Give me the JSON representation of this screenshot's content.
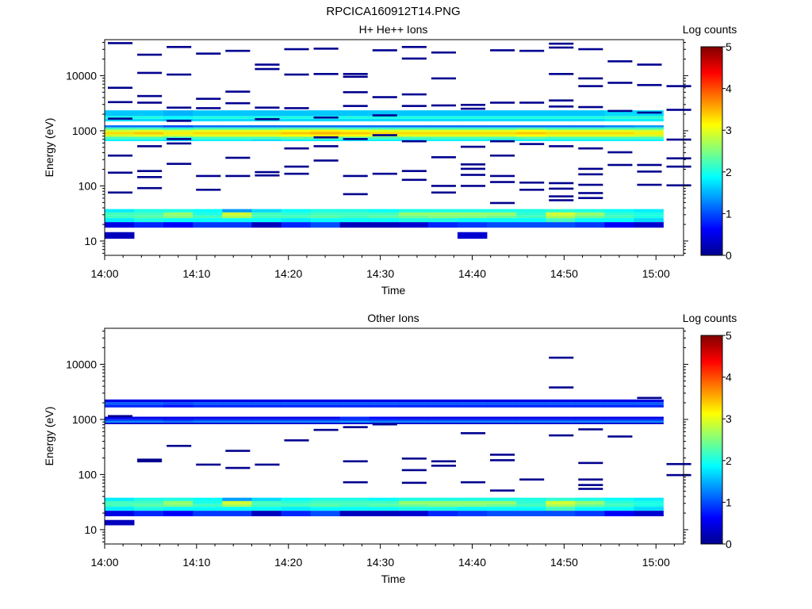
{
  "figure": {
    "filename": "RPCICA160912T14.PNG"
  },
  "chart_data": [
    {
      "type": "heatmap",
      "title": "H+ He++ Ions",
      "xlabel": "Time",
      "ylabel": "Energy (eV)",
      "colorbar_label": "Log counts",
      "x_ticks": [
        "14:00",
        "14:10",
        "14:20",
        "14:30",
        "14:40",
        "14:50",
        "15:00"
      ],
      "x_range_minutes": [
        0,
        63
      ],
      "y_scale": "log",
      "y_ticks": [
        "10",
        "100",
        "1000",
        "10000"
      ],
      "y_range": [
        5.5,
        45000
      ],
      "colorbar_ticks": [
        "0",
        "1",
        "2",
        "3",
        "4",
        "5"
      ],
      "colorbar_range": [
        0,
        5
      ],
      "colormap": "jet",
      "time_bins_minutes": [
        0,
        3.2,
        6.4,
        9.6,
        12.8,
        16,
        19.2,
        22.4,
        25.6,
        28.8,
        32,
        35.2,
        38.4,
        41.6,
        44.8,
        48,
        51.2,
        54.4,
        57.6,
        60.8
      ],
      "band_ranges": [
        {
          "e_lo": 650,
          "e_hi": 700,
          "levels": [
            1.8,
            1.8,
            1.7,
            1.8,
            1.8,
            1.7,
            1.8,
            1.8,
            1.8,
            1.8,
            1.8,
            1.8,
            1.8,
            1.8,
            1.8,
            1.8,
            1.8,
            1.8,
            1.8
          ]
        },
        {
          "e_lo": 700,
          "e_hi": 780,
          "levels": [
            2.2,
            2.2,
            2.1,
            2.2,
            2.2,
            2.2,
            2.3,
            2.3,
            2.3,
            2.2,
            2.2,
            2.2,
            2.2,
            2.2,
            2.3,
            2.2,
            2.2,
            2.2,
            2.2
          ]
        },
        {
          "e_lo": 780,
          "e_hi": 860,
          "levels": [
            2.9,
            3.0,
            2.9,
            3.0,
            3.0,
            3.0,
            3.1,
            3.2,
            3.1,
            3.0,
            3.0,
            3.0,
            3.0,
            3.0,
            3.1,
            3.0,
            3.0,
            3.0,
            2.9
          ]
        },
        {
          "e_lo": 860,
          "e_hi": 950,
          "levels": [
            3.3,
            3.4,
            3.2,
            3.3,
            3.3,
            3.3,
            3.4,
            3.5,
            3.4,
            3.3,
            3.3,
            3.3,
            3.3,
            3.3,
            3.4,
            3.3,
            3.3,
            3.3,
            3.2
          ]
        },
        {
          "e_lo": 950,
          "e_hi": 1050,
          "levels": [
            2.9,
            3.0,
            2.9,
            3.0,
            3.0,
            3.0,
            3.1,
            3.2,
            3.1,
            3.0,
            3.0,
            3.0,
            3.0,
            3.0,
            3.1,
            3.0,
            3.0,
            3.0,
            2.9
          ]
        },
        {
          "e_lo": 1050,
          "e_hi": 1150,
          "levels": [
            2.2,
            2.2,
            2.1,
            2.2,
            2.2,
            2.2,
            2.3,
            2.3,
            2.2,
            2.2,
            2.2,
            2.2,
            2.2,
            2.2,
            2.3,
            2.2,
            2.2,
            2.2,
            2.2
          ]
        },
        {
          "e_lo": 1150,
          "e_hi": 1260,
          "levels": [
            1.2,
            1.2,
            1.0,
            1.2,
            1.2,
            1.2,
            1.2,
            1.2,
            1.2,
            1.2,
            1.2,
            1.2,
            1.2,
            1.2,
            1.2,
            1.2,
            1.2,
            1.3,
            1.4
          ]
        },
        {
          "e_lo": 1480,
          "e_hi": 1650,
          "levels": [
            1.7,
            1.7,
            1.6,
            1.7,
            1.7,
            1.7,
            1.7,
            1.7,
            1.7,
            1.7,
            1.7,
            1.7,
            1.7,
            1.7,
            1.7,
            1.7,
            1.7,
            1.8,
            1.8
          ]
        },
        {
          "e_lo": 1650,
          "e_hi": 1850,
          "levels": [
            2.0,
            2.0,
            1.9,
            2.0,
            2.0,
            2.0,
            2.0,
            2.0,
            2.0,
            2.0,
            2.0,
            2.0,
            2.0,
            2.0,
            2.0,
            2.0,
            2.0,
            2.1,
            2.1
          ]
        },
        {
          "e_lo": 1850,
          "e_hi": 2350,
          "levels": [
            1.6,
            1.6,
            1.5,
            1.6,
            1.6,
            1.6,
            1.6,
            1.6,
            1.6,
            1.6,
            1.6,
            1.6,
            1.6,
            1.6,
            1.6,
            1.6,
            1.6,
            1.7,
            1.7
          ]
        },
        {
          "e_lo": 33,
          "e_hi": 38,
          "levels": [
            1.8,
            2.0,
            2.0,
            1.9,
            1.4,
            1.7,
            1.9,
            2.0,
            2.0,
            1.9,
            2.0,
            2.0,
            2.0,
            2.0,
            2.0,
            2.1,
            2.0,
            1.9,
            1.8
          ]
        },
        {
          "e_lo": 29,
          "e_hi": 33,
          "levels": [
            2.2,
            2.2,
            2.6,
            2.0,
            2.9,
            2.2,
            2.1,
            2.2,
            2.2,
            2.2,
            2.6,
            2.6,
            2.6,
            2.6,
            2.1,
            2.9,
            2.6,
            2.1,
            2.0
          ]
        },
        {
          "e_lo": 26,
          "e_hi": 29,
          "levels": [
            2.2,
            2.3,
            2.5,
            2.2,
            2.7,
            2.2,
            2.2,
            2.3,
            2.2,
            2.3,
            2.4,
            2.5,
            2.5,
            2.4,
            2.2,
            2.7,
            2.4,
            2.2,
            2.0
          ]
        },
        {
          "e_lo": 22,
          "e_hi": 26,
          "levels": [
            1.8,
            2.0,
            1.9,
            1.9,
            1.9,
            1.9,
            1.8,
            1.9,
            1.9,
            1.9,
            2.0,
            2.0,
            1.9,
            1.9,
            1.9,
            2.2,
            1.9,
            1.9,
            1.7
          ]
        },
        {
          "e_lo": 17.5,
          "e_hi": 22,
          "levels": [
            0.5,
            0.8,
            0.6,
            0.9,
            0.9,
            0.3,
            0.8,
            1.0,
            0.3,
            0.3,
            0.4,
            0.8,
            0.9,
            1.0,
            1.0,
            1.0,
            0.9,
            0.6,
            0.4
          ]
        },
        {
          "e_lo": 11,
          "e_hi": 14.5,
          "levels": [
            0.3,
            null,
            null,
            null,
            null,
            null,
            null,
            null,
            null,
            null,
            null,
            null,
            0.4,
            null,
            null,
            null,
            null,
            null,
            null
          ]
        }
      ],
      "sparse_lines_log10E": [
        [
          4.59,
          3.78,
          3.52,
          3.22,
          2.55,
          2.24,
          1.88
        ],
        [
          4.38,
          4.05,
          3.63,
          3.51,
          2.72,
          2.27,
          2.16,
          1.96
        ],
        [
          4.52,
          4.02,
          3.42,
          3.18,
          2.85,
          2.77,
          2.4
        ],
        [
          4.4,
          3.58,
          3.41,
          2.18,
          1.93
        ],
        [
          4.45,
          3.71,
          3.5,
          2.51,
          2.18
        ],
        [
          4.2,
          4.12,
          3.42,
          3.21,
          2.25,
          2.19
        ],
        [
          4.48,
          4.02,
          3.41,
          2.68,
          2.35,
          2.22
        ],
        [
          4.49,
          4.03,
          3.24,
          2.88,
          2.72,
          2.46
        ],
        [
          4.03,
          3.98,
          3.7,
          3.45,
          2.85,
          2.18,
          1.85
        ],
        [
          4.46,
          3.61,
          3.28,
          2.92,
          2.22
        ],
        [
          4.52,
          4.31,
          3.66,
          3.45,
          2.81,
          2.27,
          2.11
        ],
        [
          4.42,
          3.95,
          3.46,
          2.52,
          2.0,
          1.88
        ],
        [
          3.47,
          3.4,
          2.71,
          2.39,
          2.31,
          2.2,
          2.0
        ],
        [
          4.46,
          3.51,
          2.81,
          2.55,
          2.18,
          2.07,
          1.69
        ],
        [
          4.45,
          3.51,
          2.76,
          2.06,
          1.93
        ],
        [
          4.58,
          4.51,
          4.03,
          3.55,
          3.44,
          2.72,
          2.05,
          1.95,
          1.81,
          1.74
        ],
        [
          4.48,
          3.95,
          3.81,
          3.43,
          2.68,
          2.31,
          2.21,
          2.02,
          1.87,
          1.78
        ],
        [
          4.26,
          3.87,
          3.36,
          2.61,
          2.38
        ],
        [
          4.2,
          3.83,
          3.33,
          2.38,
          2.26,
          2.02
        ],
        [
          3.81,
          3.38,
          2.84,
          2.5,
          2.35,
          2.01
        ]
      ]
    },
    {
      "type": "heatmap",
      "title": "Other Ions",
      "xlabel": "Time",
      "ylabel": "Energy (eV)",
      "colorbar_label": "Log counts",
      "x_ticks": [
        "14:00",
        "14:10",
        "14:20",
        "14:30",
        "14:40",
        "14:50",
        "15:00"
      ],
      "x_range_minutes": [
        0,
        63
      ],
      "y_scale": "log",
      "y_ticks": [
        "10",
        "100",
        "1000",
        "10000"
      ],
      "y_range": [
        5.5,
        45000
      ],
      "colorbar_ticks": [
        "0",
        "1",
        "2",
        "3",
        "4",
        "5"
      ],
      "colorbar_range": [
        0,
        5
      ],
      "colormap": "jet",
      "time_bins_minutes": [
        0,
        3.2,
        6.4,
        9.6,
        12.8,
        16,
        19.2,
        22.4,
        25.6,
        28.8,
        32,
        35.2,
        38.4,
        41.6,
        44.8,
        48,
        51.2,
        54.4,
        57.6,
        60.8
      ],
      "band_ranges": [
        {
          "e_lo": 820,
          "e_hi": 880,
          "levels": [
            0.4,
            0.4,
            0.4,
            0.4,
            0.4,
            0.4,
            0.4,
            0.4,
            0.4,
            0.4,
            0.4,
            0.4,
            0.4,
            0.4,
            0.4,
            0.4,
            0.4,
            0.4,
            0.4
          ]
        },
        {
          "e_lo": 880,
          "e_hi": 950,
          "levels": [
            1.3,
            1.3,
            1.2,
            1.3,
            1.3,
            1.3,
            1.3,
            1.3,
            1.4,
            1.3,
            1.3,
            1.3,
            1.3,
            1.3,
            1.3,
            1.3,
            1.3,
            1.3,
            1.3
          ]
        },
        {
          "e_lo": 950,
          "e_hi": 1020,
          "levels": [
            0.8,
            0.8,
            0.7,
            0.8,
            0.8,
            0.8,
            0.8,
            0.8,
            0.8,
            0.8,
            0.8,
            0.8,
            0.8,
            0.8,
            0.8,
            0.8,
            0.8,
            0.8,
            0.8
          ]
        },
        {
          "e_lo": 1020,
          "e_hi": 1120,
          "levels": [
            0.5,
            0.5,
            0.5,
            0.5,
            0.5,
            0.5,
            0.5,
            0.5,
            0.8,
            0.6,
            0.5,
            0.5,
            0.5,
            0.5,
            0.5,
            0.5,
            0.5,
            0.5,
            0.5
          ]
        },
        {
          "e_lo": 1650,
          "e_hi": 1850,
          "levels": [
            0.8,
            0.8,
            0.7,
            0.8,
            0.8,
            0.8,
            0.8,
            0.8,
            0.8,
            0.8,
            0.8,
            0.8,
            0.8,
            0.8,
            0.8,
            0.8,
            0.8,
            0.8,
            0.8
          ]
        },
        {
          "e_lo": 1850,
          "e_hi": 2050,
          "levels": [
            1.1,
            1.1,
            1.0,
            1.1,
            1.1,
            1.1,
            1.1,
            1.1,
            1.1,
            1.1,
            1.1,
            1.1,
            1.1,
            1.1,
            1.1,
            1.1,
            1.1,
            1.1,
            1.1
          ]
        },
        {
          "e_lo": 2050,
          "e_hi": 2300,
          "levels": [
            0.5,
            0.5,
            0.5,
            0.5,
            0.5,
            0.5,
            0.5,
            0.5,
            0.5,
            0.5,
            0.5,
            0.5,
            0.5,
            0.5,
            0.5,
            0.5,
            0.5,
            0.5,
            0.5
          ]
        },
        {
          "e_lo": 33,
          "e_hi": 38,
          "levels": [
            1.8,
            2.0,
            2.0,
            1.9,
            1.4,
            1.7,
            1.9,
            2.0,
            2.0,
            1.9,
            2.0,
            2.0,
            2.0,
            2.0,
            2.0,
            2.1,
            2.0,
            1.9,
            1.8
          ]
        },
        {
          "e_lo": 29,
          "e_hi": 33,
          "levels": [
            2.2,
            2.2,
            2.6,
            2.0,
            2.9,
            2.2,
            2.1,
            2.2,
            2.2,
            2.2,
            2.6,
            2.6,
            2.6,
            2.6,
            2.1,
            2.9,
            2.6,
            2.1,
            2.0
          ]
        },
        {
          "e_lo": 26,
          "e_hi": 29,
          "levels": [
            2.2,
            2.3,
            2.5,
            2.2,
            2.7,
            2.2,
            2.2,
            2.3,
            2.2,
            2.3,
            2.4,
            2.5,
            2.5,
            2.4,
            2.2,
            2.7,
            2.4,
            2.2,
            2.0
          ]
        },
        {
          "e_lo": 22,
          "e_hi": 26,
          "levels": [
            1.8,
            2.0,
            1.9,
            1.9,
            1.9,
            1.9,
            1.8,
            1.9,
            1.9,
            1.9,
            2.0,
            2.0,
            1.9,
            1.9,
            1.9,
            2.2,
            1.9,
            1.9,
            1.7
          ]
        },
        {
          "e_lo": 17.5,
          "e_hi": 22,
          "levels": [
            0.5,
            0.8,
            0.6,
            0.9,
            0.9,
            0.3,
            0.8,
            1.0,
            0.3,
            0.3,
            0.4,
            0.8,
            0.9,
            1.0,
            1.0,
            1.0,
            0.9,
            0.6,
            0.4
          ]
        },
        {
          "e_lo": 12,
          "e_hi": 15,
          "levels": [
            0.3,
            null,
            null,
            null,
            null,
            null,
            null,
            null,
            null,
            null,
            null,
            null,
            null,
            null,
            null,
            null,
            null,
            null,
            null
          ]
        }
      ],
      "sparse_lines_log10E": [
        [
          3.06
        ],
        [
          2.27,
          2.24
        ],
        [
          2.52
        ],
        [
          2.18
        ],
        [
          2.43,
          2.12
        ],
        [
          2.18
        ],
        [
          2.62
        ],
        [
          2.81
        ],
        [
          2.86,
          2.24,
          1.86
        ],
        [
          2.91
        ],
        [
          2.29,
          2.08,
          1.85
        ],
        [
          2.24,
          2.16
        ],
        [
          2.75,
          1.86
        ],
        [
          2.36,
          2.26,
          1.71
        ],
        [
          1.91
        ],
        [
          4.12,
          3.58,
          2.71
        ],
        [
          2.82,
          2.21,
          1.91,
          1.81,
          1.74
        ],
        [
          2.69
        ],
        [
          3.39
        ],
        [
          2.19,
          1.99
        ]
      ]
    }
  ]
}
